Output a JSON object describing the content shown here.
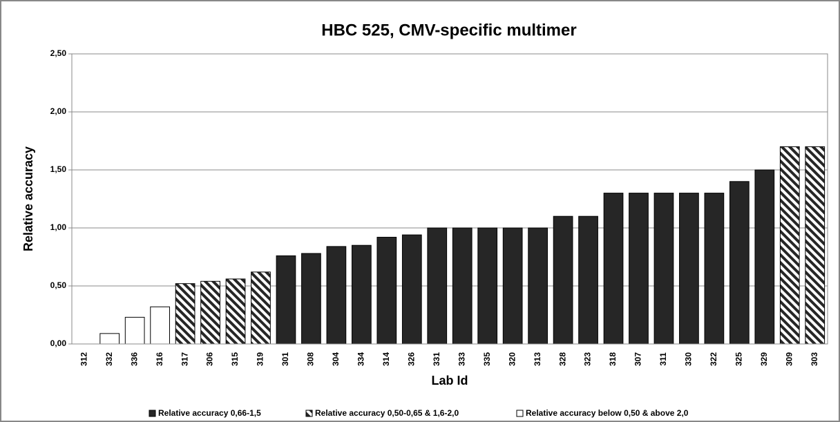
{
  "chart_data": {
    "type": "bar",
    "title": "HBC 525, CMV-specific multimer",
    "x_label": "Lab Id",
    "y_label": "Relative accuracy",
    "categories": [
      "312",
      "332",
      "336",
      "316",
      "317",
      "306",
      "315",
      "319",
      "301",
      "308",
      "304",
      "334",
      "314",
      "326",
      "331",
      "333",
      "335",
      "320",
      "313",
      "328",
      "323",
      "318",
      "307",
      "311",
      "330",
      "322",
      "325",
      "329",
      "309",
      "303"
    ],
    "series": [
      {
        "name": "Relative accuracy 0,66-1,5",
        "color": "#262626",
        "pattern": "solid",
        "values": [
          null,
          null,
          null,
          null,
          null,
          null,
          null,
          null,
          0.76,
          0.78,
          0.84,
          0.85,
          0.92,
          0.94,
          1.0,
          1.0,
          1.0,
          1.0,
          1.0,
          1.1,
          1.1,
          1.3,
          1.3,
          1.3,
          1.3,
          1.3,
          1.4,
          1.5,
          null,
          null
        ]
      },
      {
        "name": "Relative accuracy 0,50-0,65 & 1,6-2,0",
        "color": "#262626",
        "pattern": "hatch",
        "values": [
          null,
          null,
          null,
          null,
          0.52,
          0.54,
          0.56,
          0.62,
          null,
          null,
          null,
          null,
          null,
          null,
          null,
          null,
          null,
          null,
          null,
          null,
          null,
          null,
          null,
          null,
          null,
          null,
          null,
          null,
          1.7,
          1.7
        ]
      },
      {
        "name": "Relative accuracy below 0,50 & above 2,0",
        "color": "#ffffff",
        "pattern": "solid",
        "values": [
          0,
          0.09,
          0.23,
          0.32,
          null,
          null,
          null,
          null,
          null,
          null,
          null,
          null,
          null,
          null,
          null,
          null,
          null,
          null,
          null,
          null,
          null,
          null,
          null,
          null,
          null,
          null,
          null,
          null,
          null,
          null
        ]
      }
    ],
    "ylim": [
      0,
      2.5
    ],
    "yticks": [
      {
        "value": 0,
        "label": "0,00"
      },
      {
        "value": 0.5,
        "label": "0,50"
      },
      {
        "value": 1,
        "label": "1,00"
      },
      {
        "value": 1.5,
        "label": "1,50"
      },
      {
        "value": 2,
        "label": "2,00"
      },
      {
        "value": 2.5,
        "label": "2,50"
      }
    ],
    "grid": true
  }
}
